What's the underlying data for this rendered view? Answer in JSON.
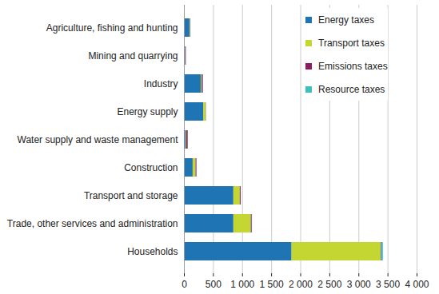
{
  "chart_data": {
    "type": "bar",
    "orientation": "horizontal",
    "stacked": true,
    "grid": true,
    "legend": "top-right",
    "categories": [
      "Agriculture, fishing and hunting",
      "Mining and quarrying",
      "Industry",
      "Energy supply",
      "Water supply and waste management",
      "Construction",
      "Transport and storage",
      "Trade, other services and administration",
      "Households"
    ],
    "series": [
      {
        "name": "Energy taxes",
        "color": "#1f74b4",
        "values": [
          95,
          20,
          290,
          330,
          30,
          150,
          850,
          850,
          1850
        ]
      },
      {
        "name": "Transport taxes",
        "color": "#c3d631",
        "values": [
          10,
          2,
          15,
          40,
          10,
          50,
          110,
          300,
          1530
        ]
      },
      {
        "name": "Emissions taxes",
        "color": "#8c1d63",
        "values": [
          5,
          10,
          20,
          5,
          25,
          15,
          15,
          15,
          10
        ]
      },
      {
        "name": "Resource taxes",
        "color": "#3fbfbf",
        "values": [
          3,
          2,
          5,
          2,
          3,
          2,
          2,
          5,
          30
        ]
      }
    ],
    "xlim": [
      0,
      4000
    ],
    "xticks": [
      0,
      500,
      {
        "value": 1000,
        "label": "1 000"
      },
      {
        "value": 1500,
        "label": "1 500"
      },
      {
        "value": 2000,
        "label": "2 000"
      },
      {
        "value": 2500,
        "label": "2 500"
      },
      {
        "value": 3000,
        "label": "3 000"
      },
      {
        "value": 3500,
        "label": "3 500"
      },
      {
        "value": 4000,
        "label": "4 000"
      }
    ]
  }
}
